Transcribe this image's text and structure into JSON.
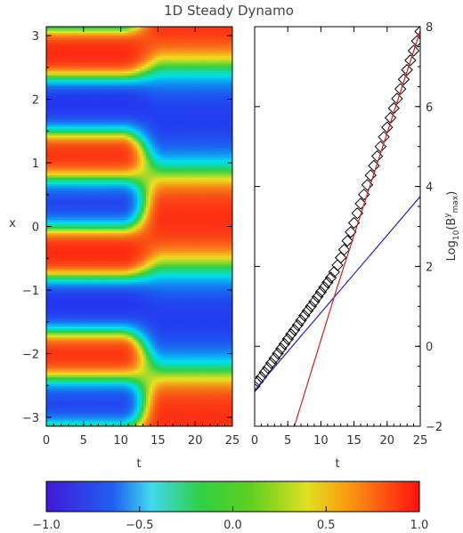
{
  "title": "1D Steady Dynamo",
  "chart_data": [
    {
      "type": "heatmap",
      "title": "1D Steady Dynamo",
      "xlabel": "t",
      "ylabel": "x",
      "xlim": [
        0,
        25
      ],
      "ylim": [
        -3.14,
        3.14
      ],
      "xticks": [
        "0",
        "5",
        "10",
        "15",
        "20",
        "25"
      ],
      "yticks": [
        "3",
        "2",
        "1",
        "0",
        "-1",
        "-2",
        "-3"
      ],
      "colormap": "rainbow",
      "vlim": [
        -1.0,
        1.0
      ],
      "transition_t": [
        10,
        16
      ],
      "early_wavenumber": 4,
      "late_wavenumber": 2,
      "colors": {
        "blue": "#2828f0",
        "cyan": "#00e0f0",
        "green": "#30d040",
        "yellow": "#f0e020",
        "red": "#ff1010"
      }
    },
    {
      "type": "line",
      "xlabel": "t",
      "ylabel": "Log10(Bymax)",
      "ylabel_parts": {
        "base": "Log",
        "sub1": "10",
        "open": "(B",
        "sup": "y",
        "sub2": "max",
        "close": ")"
      },
      "xlim": [
        0,
        25
      ],
      "ylim": [
        -2,
        8
      ],
      "xticks": [
        "0",
        "5",
        "10",
        "15",
        "20",
        "25"
      ],
      "yticks": [
        "-2",
        "0",
        "2",
        "4",
        "6",
        "8"
      ],
      "series": [
        {
          "marker": "diamond",
          "color": "#000000",
          "x": [
            0,
            0.5,
            1,
            1.5,
            2,
            2.5,
            3,
            3.5,
            4,
            4.5,
            5,
            5.5,
            6,
            6.5,
            7,
            7.5,
            8,
            8.5,
            9,
            9.5,
            10,
            10.5,
            11,
            11.5,
            12,
            12.5,
            13,
            13.5,
            14,
            14.5,
            15,
            15.5,
            16,
            16.5,
            17,
            17.5,
            18,
            18.5,
            19,
            19.5,
            20,
            20.5,
            21,
            21.5,
            22,
            22.5,
            23,
            23.5,
            24,
            24.5,
            25
          ],
          "y": [
            -1.0,
            -0.88,
            -0.77,
            -0.65,
            -0.54,
            -0.42,
            -0.3,
            -0.18,
            -0.06,
            0.06,
            0.18,
            0.3,
            0.41,
            0.53,
            0.65,
            0.77,
            0.89,
            1.0,
            1.12,
            1.24,
            1.36,
            1.48,
            1.6,
            1.72,
            1.86,
            2.03,
            2.22,
            2.42,
            2.64,
            2.86,
            3.09,
            3.33,
            3.57,
            3.8,
            4.04,
            4.28,
            4.52,
            4.76,
            5.0,
            5.24,
            5.48,
            5.72,
            5.96,
            6.2,
            6.44,
            6.68,
            6.92,
            7.16,
            7.4,
            7.64,
            7.88
          ]
        },
        {
          "color": "#2020c0",
          "x": [
            0,
            25
          ],
          "y": [
            -1.1,
            3.75
          ]
        },
        {
          "color": "#d02020",
          "x": [
            6,
            12.5,
            25
          ],
          "y": [
            -2,
            1.5,
            7.9
          ]
        }
      ]
    },
    {
      "type": "colorbar",
      "ticks": [
        "-1.0",
        "-0.5",
        "0.0",
        "0.5",
        "1.0"
      ]
    }
  ]
}
